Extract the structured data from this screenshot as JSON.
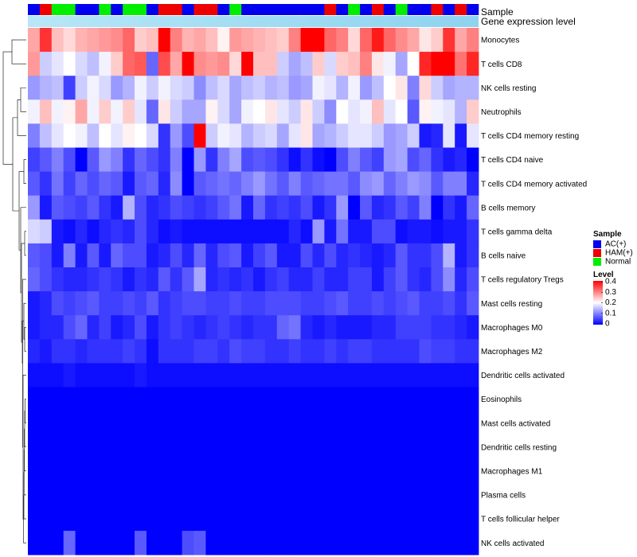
{
  "chart_data": {
    "type": "heatmap",
    "title": "",
    "annotation_tracks": [
      "Sample",
      "Gene expression level"
    ],
    "rows": [
      "Monocytes",
      "T cells CD8",
      "NK cells resting",
      "Neutrophils",
      "T cells CD4 memory resting",
      "T cells CD4 naive",
      "T cells CD4 memory activated",
      "B cells memory",
      "T cells gamma delta",
      "B cells naive",
      "T cells regulatory  Tregs",
      "Mast cells resting",
      "Macrophages M0",
      "Macrophages M2",
      "Dendritic cells activated",
      "Eosinophils",
      "Mast cells activated",
      "Dendritic cells resting",
      "Macrophages M1",
      "Plasma cells",
      "T cells follicular helper",
      "NK cells activated"
    ],
    "sample_groups": [
      "A",
      "H",
      "N",
      "N",
      "A",
      "A",
      "N",
      "A",
      "N",
      "N",
      "A",
      "H",
      "H",
      "A",
      "H",
      "H",
      "A",
      "N",
      "A",
      "A",
      "A",
      "A",
      "A",
      "A",
      "A",
      "H",
      "A",
      "N",
      "A",
      "H",
      "A",
      "N",
      "A",
      "A",
      "H",
      "A",
      "H",
      "A"
    ],
    "legend": {
      "sample": {
        "title": "Sample",
        "entries": [
          {
            "key": "A",
            "label": "AC(+)",
            "color": "#0000ee"
          },
          {
            "key": "H",
            "label": "HAM(+)",
            "color": "#ee0000"
          },
          {
            "key": "N",
            "label": "Normal",
            "color": "#00ee00"
          }
        ]
      },
      "level": {
        "title": "Level",
        "ticks": [
          "0.4",
          "0.3",
          "0.2",
          "0.1",
          "0"
        ],
        "min": 0,
        "max": 0.4
      }
    },
    "gene_expression_color": "#8dd3f0",
    "color_scale": {
      "low": "#0000ff",
      "mid": "#ffffff",
      "high": "#ff0000",
      "mid_value": 0.2
    },
    "values": [
      [
        0.27,
        0.36,
        0.25,
        0.23,
        0.26,
        0.27,
        0.28,
        0.29,
        0.32,
        0.24,
        0.25,
        0.4,
        0.3,
        0.26,
        0.27,
        0.25,
        0.21,
        0.28,
        0.27,
        0.26,
        0.25,
        0.24,
        0.3,
        0.4,
        0.4,
        0.32,
        0.3,
        0.23,
        0.32,
        0.38,
        0.32,
        0.29,
        0.27,
        0.22,
        0.24,
        0.36,
        0.27,
        0.3
      ],
      [
        0.28,
        0.16,
        0.18,
        0.2,
        0.17,
        0.15,
        0.19,
        0.24,
        0.32,
        0.33,
        0.08,
        0.34,
        0.27,
        0.4,
        0.29,
        0.28,
        0.29,
        0.23,
        0.4,
        0.25,
        0.25,
        0.16,
        0.13,
        0.15,
        0.24,
        0.17,
        0.24,
        0.25,
        0.3,
        0.22,
        0.19,
        0.13,
        0.2,
        0.37,
        0.4,
        0.4,
        0.31,
        0.37
      ],
      [
        0.12,
        0.14,
        0.15,
        0.05,
        0.16,
        0.19,
        0.17,
        0.12,
        0.14,
        0.19,
        0.16,
        0.19,
        0.17,
        0.16,
        0.11,
        0.15,
        0.17,
        0.13,
        0.15,
        0.16,
        0.14,
        0.15,
        0.12,
        0.13,
        0.19,
        0.18,
        0.14,
        0.19,
        0.12,
        0.15,
        0.2,
        0.22,
        0.1,
        0.23,
        0.16,
        0.13,
        0.14,
        0.14
      ],
      [
        0.19,
        0.25,
        0.19,
        0.21,
        0.27,
        0.19,
        0.24,
        0.19,
        0.24,
        0.18,
        0.08,
        0.22,
        0.16,
        0.13,
        0.13,
        0.21,
        0.17,
        0.13,
        0.19,
        0.2,
        0.22,
        0.18,
        0.16,
        0.22,
        0.16,
        0.11,
        0.2,
        0.18,
        0.19,
        0.25,
        0.18,
        0.2,
        0.07,
        0.21,
        0.19,
        0.18,
        0.14,
        0.24
      ],
      [
        0.1,
        0.15,
        0.18,
        0.2,
        0.19,
        0.15,
        0.2,
        0.18,
        0.21,
        0.2,
        0.17,
        0.04,
        0.12,
        0.06,
        0.4,
        0.16,
        0.19,
        0.18,
        0.14,
        0.16,
        0.17,
        0.13,
        0.18,
        0.22,
        0.13,
        0.14,
        0.16,
        0.18,
        0.18,
        0.16,
        0.12,
        0.13,
        0.16,
        0.02,
        0.03,
        0.18,
        0.02,
        0.18
      ],
      [
        0.05,
        0.07,
        0.1,
        0.06,
        0.0,
        0.07,
        0.12,
        0.1,
        0.04,
        0.08,
        0.06,
        0.04,
        0.1,
        0.0,
        0.12,
        0.04,
        0.1,
        0.13,
        0.06,
        0.07,
        0.06,
        0.04,
        0.01,
        0.04,
        0.01,
        0.0,
        0.06,
        0.1,
        0.07,
        0.05,
        0.12,
        0.13,
        0.06,
        0.08,
        0.04,
        0.02,
        0.03,
        0.0
      ],
      [
        0.07,
        0.04,
        0.09,
        0.05,
        0.08,
        0.06,
        0.08,
        0.07,
        0.02,
        0.07,
        0.08,
        0.03,
        0.11,
        0.0,
        0.07,
        0.08,
        0.09,
        0.08,
        0.1,
        0.12,
        0.09,
        0.07,
        0.1,
        0.07,
        0.08,
        0.09,
        0.09,
        0.07,
        0.11,
        0.12,
        0.08,
        0.1,
        0.12,
        0.11,
        0.07,
        0.1,
        0.1,
        0.03
      ],
      [
        0.12,
        0.02,
        0.07,
        0.06,
        0.05,
        0.07,
        0.04,
        0.02,
        0.14,
        0.06,
        0.03,
        0.04,
        0.06,
        0.05,
        0.04,
        0.05,
        0.07,
        0.09,
        0.02,
        0.08,
        0.04,
        0.05,
        0.04,
        0.06,
        0.02,
        0.04,
        0.12,
        0.0,
        0.07,
        0.03,
        0.04,
        0.07,
        0.05,
        0.1,
        0.0,
        0.04,
        0.02,
        0.08
      ],
      [
        0.17,
        0.16,
        0.02,
        0.01,
        0.03,
        0.01,
        0.03,
        0.04,
        0.03,
        0.06,
        0.03,
        0.01,
        0.02,
        0.01,
        0.01,
        0.01,
        0.01,
        0.01,
        0.01,
        0.01,
        0.01,
        0.01,
        0.03,
        0.01,
        0.12,
        0.02,
        0.09,
        0.02,
        0.02,
        0.06,
        0.06,
        0.01,
        0.02,
        0.02,
        0.01,
        0.02,
        0.02,
        0.04
      ],
      [
        0.07,
        0.06,
        0.02,
        0.1,
        0.02,
        0.07,
        0.02,
        0.08,
        0.06,
        0.06,
        0.02,
        0.03,
        0.06,
        0.03,
        0.08,
        0.03,
        0.06,
        0.07,
        0.02,
        0.05,
        0.07,
        0.02,
        0.02,
        0.06,
        0.03,
        0.06,
        0.03,
        0.04,
        0.03,
        0.02,
        0.03,
        0.07,
        0.04,
        0.04,
        0.06,
        0.14,
        0.02,
        0.04
      ],
      [
        0.08,
        0.06,
        0.04,
        0.03,
        0.03,
        0.04,
        0.05,
        0.04,
        0.02,
        0.04,
        0.03,
        0.07,
        0.04,
        0.07,
        0.13,
        0.03,
        0.04,
        0.03,
        0.04,
        0.02,
        0.04,
        0.05,
        0.03,
        0.03,
        0.05,
        0.03,
        0.03,
        0.05,
        0.05,
        0.02,
        0.05,
        0.07,
        0.04,
        0.03,
        0.06,
        0.11,
        0.03,
        0.06
      ],
      [
        0.02,
        0.03,
        0.06,
        0.05,
        0.06,
        0.07,
        0.05,
        0.05,
        0.06,
        0.05,
        0.07,
        0.04,
        0.05,
        0.06,
        0.06,
        0.05,
        0.05,
        0.06,
        0.05,
        0.05,
        0.06,
        0.06,
        0.06,
        0.05,
        0.05,
        0.06,
        0.07,
        0.05,
        0.05,
        0.06,
        0.05,
        0.06,
        0.07,
        0.05,
        0.05,
        0.06,
        0.04,
        0.07
      ],
      [
        0.02,
        0.03,
        0.03,
        0.06,
        0.08,
        0.03,
        0.05,
        0.02,
        0.03,
        0.06,
        0.02,
        0.04,
        0.05,
        0.04,
        0.03,
        0.04,
        0.05,
        0.04,
        0.03,
        0.04,
        0.04,
        0.08,
        0.09,
        0.03,
        0.02,
        0.03,
        0.02,
        0.02,
        0.02,
        0.03,
        0.03,
        0.05,
        0.05,
        0.05,
        0.04,
        0.04,
        0.03,
        0.02
      ],
      [
        0.03,
        0.02,
        0.04,
        0.04,
        0.03,
        0.04,
        0.04,
        0.04,
        0.05,
        0.04,
        0.01,
        0.04,
        0.04,
        0.04,
        0.05,
        0.05,
        0.04,
        0.06,
        0.05,
        0.05,
        0.04,
        0.04,
        0.05,
        0.04,
        0.04,
        0.05,
        0.04,
        0.05,
        0.05,
        0.04,
        0.04,
        0.04,
        0.04,
        0.06,
        0.05,
        0.05,
        0.04,
        0.04
      ],
      [
        0.01,
        0.01,
        0.01,
        0.02,
        0.01,
        0.01,
        0.01,
        0.01,
        0.01,
        0.02,
        0.01,
        0.01,
        0.01,
        0.01,
        0.01,
        0.01,
        0.01,
        0.01,
        0.01,
        0.01,
        0.01,
        0.01,
        0.01,
        0.01,
        0.01,
        0.01,
        0.01,
        0.01,
        0.01,
        0.01,
        0.01,
        0.01,
        0.01,
        0.01,
        0.01,
        0.01,
        0.01,
        0.01
      ],
      [
        0,
        0,
        0,
        0,
        0,
        0,
        0,
        0,
        0,
        0,
        0,
        0,
        0,
        0,
        0,
        0,
        0,
        0,
        0,
        0,
        0,
        0,
        0,
        0,
        0,
        0,
        0,
        0,
        0,
        0,
        0,
        0,
        0,
        0,
        0,
        0,
        0,
        0
      ],
      [
        0,
        0,
        0,
        0,
        0,
        0,
        0,
        0,
        0,
        0,
        0,
        0,
        0,
        0,
        0,
        0,
        0,
        0,
        0,
        0,
        0,
        0,
        0,
        0,
        0,
        0,
        0,
        0,
        0,
        0,
        0,
        0,
        0,
        0,
        0,
        0,
        0,
        0
      ],
      [
        0,
        0,
        0,
        0,
        0,
        0,
        0,
        0,
        0,
        0,
        0,
        0,
        0,
        0,
        0,
        0,
        0,
        0,
        0,
        0,
        0,
        0,
        0,
        0,
        0,
        0,
        0,
        0,
        0,
        0,
        0,
        0,
        0,
        0,
        0,
        0,
        0,
        0
      ],
      [
        0,
        0,
        0,
        0,
        0,
        0,
        0,
        0,
        0,
        0,
        0,
        0,
        0,
        0,
        0,
        0,
        0,
        0,
        0,
        0,
        0,
        0,
        0,
        0,
        0,
        0,
        0,
        0,
        0,
        0,
        0,
        0,
        0,
        0,
        0,
        0,
        0,
        0
      ],
      [
        0,
        0,
        0,
        0,
        0,
        0,
        0,
        0,
        0,
        0,
        0,
        0,
        0,
        0,
        0,
        0,
        0,
        0,
        0,
        0,
        0,
        0,
        0,
        0,
        0,
        0,
        0,
        0,
        0,
        0,
        0,
        0,
        0,
        0,
        0,
        0,
        0,
        0
      ],
      [
        0,
        0,
        0,
        0,
        0,
        0,
        0,
        0,
        0,
        0,
        0,
        0,
        0,
        0,
        0,
        0,
        0,
        0,
        0,
        0,
        0,
        0,
        0,
        0,
        0,
        0,
        0,
        0,
        0,
        0,
        0,
        0,
        0,
        0,
        0,
        0,
        0,
        0
      ],
      [
        0,
        0,
        0,
        0.08,
        0,
        0,
        0,
        0,
        0,
        0.07,
        0,
        0,
        0,
        0.06,
        0.07,
        0,
        0,
        0,
        0,
        0,
        0,
        0,
        0,
        0,
        0,
        0,
        0,
        0,
        0,
        0,
        0,
        0,
        0,
        0,
        0,
        0,
        0,
        0
      ]
    ]
  }
}
